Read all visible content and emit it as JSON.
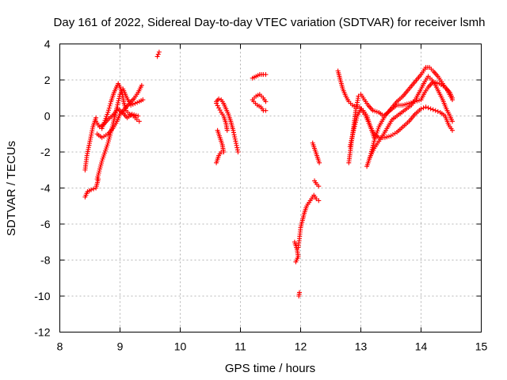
{
  "chart_data": {
    "type": "scatter",
    "title": "Day 161 of 2022, Sidereal Day-to-day VTEC variation (SDTVAR) for receiver lsmh",
    "xlabel": "GPS time / hours",
    "ylabel": "SDTVAR / TECUs",
    "xlim": [
      8,
      15
    ],
    "ylim": [
      -12,
      4
    ],
    "xticks": [
      "8",
      "9",
      "10",
      "11",
      "12",
      "13",
      "14",
      "15"
    ],
    "yticks": [
      "-12",
      "-10",
      "-8",
      "-6",
      "-4",
      "-2",
      "0",
      "2",
      "4"
    ],
    "grid": true,
    "marker": "+",
    "marker_color": "#ff0000",
    "polylines": [
      [
        [
          8.42,
          -4.5
        ],
        [
          8.46,
          -4.2
        ],
        [
          8.52,
          -4.1
        ],
        [
          8.6,
          -4.0
        ],
        [
          8.64,
          -3.5
        ]
      ],
      [
        [
          8.42,
          -3.0
        ],
        [
          8.45,
          -2.2
        ],
        [
          8.5,
          -1.4
        ],
        [
          8.55,
          -0.6
        ],
        [
          8.6,
          -0.1
        ]
      ],
      [
        [
          8.6,
          -0.3
        ],
        [
          8.66,
          -0.6
        ],
        [
          8.72,
          -0.5
        ],
        [
          8.8,
          -0.2
        ],
        [
          8.9,
          0.1
        ],
        [
          8.96,
          0.4
        ],
        [
          9.04,
          0.2
        ],
        [
          9.12,
          -0.1
        ],
        [
          9.2,
          0.1
        ],
        [
          9.3,
          0.0
        ]
      ],
      [
        [
          8.62,
          -3.5
        ],
        [
          8.7,
          -2.5
        ],
        [
          8.8,
          -1.5
        ],
        [
          8.88,
          -0.5
        ],
        [
          8.95,
          0.5
        ],
        [
          9.0,
          1.2
        ],
        [
          9.05,
          1.5
        ],
        [
          9.1,
          1.1
        ],
        [
          9.18,
          0.6
        ],
        [
          9.25,
          0.7
        ],
        [
          9.32,
          0.8
        ],
        [
          9.38,
          0.9
        ]
      ],
      [
        [
          8.62,
          -1.0
        ],
        [
          8.7,
          -1.2
        ],
        [
          8.8,
          -1.0
        ],
        [
          8.88,
          -0.7
        ],
        [
          8.95,
          -0.3
        ],
        [
          9.0,
          0.1
        ],
        [
          9.08,
          0.4
        ],
        [
          9.16,
          0.7
        ],
        [
          9.24,
          1.0
        ],
        [
          9.3,
          1.3
        ],
        [
          9.36,
          1.7
        ]
      ],
      [
        [
          8.7,
          -0.7
        ],
        [
          8.8,
          0.2
        ],
        [
          8.85,
          0.8
        ],
        [
          8.9,
          1.3
        ],
        [
          8.94,
          1.6
        ],
        [
          8.97,
          1.8
        ],
        [
          9.0,
          1.6
        ],
        [
          9.04,
          1.2
        ],
        [
          9.06,
          0.8
        ],
        [
          9.1,
          0.3
        ],
        [
          9.16,
          0.1
        ],
        [
          9.22,
          0.0
        ],
        [
          9.28,
          -0.2
        ],
        [
          9.32,
          -0.3
        ]
      ],
      [
        [
          9.62,
          3.3
        ],
        [
          9.65,
          3.55
        ]
      ],
      [
        [
          10.6,
          -2.6
        ],
        [
          10.64,
          -2.2
        ],
        [
          10.68,
          -2.0
        ],
        [
          10.72,
          -2.0
        ]
      ],
      [
        [
          10.62,
          -0.8
        ],
        [
          10.66,
          -1.2
        ],
        [
          10.7,
          -1.6
        ],
        [
          10.72,
          -2.0
        ]
      ],
      [
        [
          10.6,
          0.8
        ],
        [
          10.64,
          0.95
        ],
        [
          10.68,
          0.9
        ],
        [
          10.72,
          0.7
        ],
        [
          10.76,
          0.4
        ],
        [
          10.8,
          0.1
        ],
        [
          10.84,
          -0.3
        ],
        [
          10.88,
          -0.8
        ],
        [
          10.92,
          -1.4
        ],
        [
          10.96,
          -2.0
        ]
      ],
      [
        [
          10.6,
          0.7
        ],
        [
          10.64,
          0.45
        ],
        [
          10.68,
          0.2
        ],
        [
          10.72,
          0.0
        ],
        [
          10.76,
          -0.4
        ],
        [
          10.78,
          -0.8
        ]
      ],
      [
        [
          11.2,
          2.1
        ],
        [
          11.26,
          2.2
        ],
        [
          11.32,
          2.3
        ],
        [
          11.38,
          2.3
        ],
        [
          11.42,
          2.3
        ]
      ],
      [
        [
          11.2,
          0.9
        ],
        [
          11.26,
          1.1
        ],
        [
          11.32,
          1.2
        ],
        [
          11.38,
          1.0
        ],
        [
          11.42,
          0.8
        ]
      ],
      [
        [
          11.22,
          0.8
        ],
        [
          11.28,
          0.6
        ],
        [
          11.34,
          0.5
        ],
        [
          11.38,
          0.3
        ],
        [
          11.42,
          0.3
        ]
      ],
      [
        [
          11.9,
          -7.0
        ],
        [
          11.94,
          -7.4
        ],
        [
          11.96,
          -7.8
        ],
        [
          11.92,
          -8.1
        ]
      ],
      [
        [
          11.96,
          -7.3
        ],
        [
          11.98,
          -6.8
        ],
        [
          12.0,
          -6.2
        ],
        [
          12.03,
          -5.8
        ],
        [
          12.06,
          -5.4
        ],
        [
          12.1,
          -5.0
        ],
        [
          12.14,
          -4.8
        ],
        [
          12.18,
          -4.6
        ],
        [
          12.22,
          -4.4
        ],
        [
          12.26,
          -4.6
        ],
        [
          12.3,
          -4.7
        ]
      ],
      [
        [
          11.97,
          -10.0
        ],
        [
          11.98,
          -9.8
        ]
      ],
      [
        [
          12.2,
          -1.5
        ],
        [
          12.24,
          -1.9
        ],
        [
          12.28,
          -2.3
        ],
        [
          12.31,
          -2.6
        ]
      ],
      [
        [
          12.23,
          -3.6
        ],
        [
          12.27,
          -3.8
        ],
        [
          12.3,
          -3.9
        ]
      ],
      [
        [
          12.62,
          2.5
        ],
        [
          12.66,
          2.0
        ],
        [
          12.7,
          1.5
        ],
        [
          12.75,
          1.1
        ],
        [
          12.8,
          0.8
        ],
        [
          12.86,
          0.6
        ],
        [
          12.92,
          0.5
        ],
        [
          12.98,
          0.5
        ],
        [
          13.04,
          0.3
        ],
        [
          13.1,
          0.0
        ],
        [
          13.14,
          -0.4
        ],
        [
          13.18,
          -0.8
        ],
        [
          13.22,
          -1.2
        ]
      ],
      [
        [
          12.8,
          -2.6
        ],
        [
          12.84,
          -1.6
        ],
        [
          12.88,
          -0.6
        ],
        [
          12.92,
          0.4
        ],
        [
          12.96,
          1.1
        ],
        [
          13.0,
          1.2
        ],
        [
          13.06,
          0.9
        ],
        [
          13.12,
          0.6
        ],
        [
          13.2,
          0.3
        ],
        [
          13.3,
          0.2
        ],
        [
          13.38,
          0.0
        ],
        [
          13.45,
          0.2
        ],
        [
          13.52,
          0.4
        ],
        [
          13.6,
          0.6
        ],
        [
          13.7,
          0.6
        ],
        [
          13.8,
          0.7
        ],
        [
          13.9,
          0.8
        ],
        [
          14.0,
          0.9
        ],
        [
          14.06,
          1.3
        ],
        [
          14.12,
          1.6
        ],
        [
          14.2,
          1.9
        ],
        [
          14.3,
          1.8
        ],
        [
          14.4,
          1.6
        ],
        [
          14.48,
          1.3
        ],
        [
          14.52,
          1.0
        ]
      ],
      [
        [
          12.82,
          -1.7
        ],
        [
          12.88,
          -0.8
        ],
        [
          12.94,
          0.0
        ],
        [
          13.0,
          0.4
        ],
        [
          13.08,
          0.0
        ],
        [
          13.16,
          -0.6
        ],
        [
          13.22,
          -1.0
        ],
        [
          13.3,
          -1.2
        ],
        [
          13.4,
          -1.2
        ],
        [
          13.5,
          -1.1
        ],
        [
          13.6,
          -0.9
        ],
        [
          13.7,
          -0.6
        ],
        [
          13.8,
          -0.3
        ],
        [
          13.9,
          0.1
        ],
        [
          14.0,
          0.4
        ],
        [
          14.08,
          0.5
        ],
        [
          14.16,
          0.4
        ],
        [
          14.24,
          0.3
        ],
        [
          14.32,
          0.2
        ],
        [
          14.4,
          0.0
        ],
        [
          14.46,
          -0.5
        ],
        [
          14.52,
          -0.8
        ]
      ],
      [
        [
          13.1,
          -2.8
        ],
        [
          13.16,
          -2.2
        ],
        [
          13.22,
          -1.4
        ],
        [
          13.3,
          -0.6
        ],
        [
          13.4,
          0.0
        ],
        [
          13.5,
          0.4
        ],
        [
          13.6,
          0.8
        ],
        [
          13.7,
          1.1
        ],
        [
          13.8,
          1.5
        ],
        [
          13.9,
          1.9
        ],
        [
          14.0,
          2.3
        ],
        [
          14.08,
          2.7
        ],
        [
          14.14,
          2.7
        ],
        [
          14.2,
          2.5
        ],
        [
          14.28,
          2.2
        ],
        [
          14.36,
          1.8
        ],
        [
          14.44,
          1.4
        ],
        [
          14.52,
          0.9
        ]
      ],
      [
        [
          13.15,
          -2.3
        ],
        [
          13.22,
          -1.8
        ],
        [
          13.3,
          -1.4
        ],
        [
          13.38,
          -1.0
        ],
        [
          13.45,
          -0.6
        ],
        [
          13.52,
          -0.2
        ],
        [
          13.6,
          0.0
        ],
        [
          13.68,
          0.2
        ],
        [
          13.76,
          0.4
        ],
        [
          13.84,
          0.6
        ],
        [
          13.92,
          1.0
        ],
        [
          14.0,
          1.5
        ],
        [
          14.06,
          1.9
        ],
        [
          14.12,
          2.2
        ],
        [
          14.18,
          2.0
        ],
        [
          14.24,
          1.7
        ],
        [
          14.3,
          1.3
        ],
        [
          14.36,
          0.9
        ],
        [
          14.42,
          0.4
        ],
        [
          14.48,
          0.0
        ],
        [
          14.52,
          -0.3
        ]
      ]
    ]
  }
}
